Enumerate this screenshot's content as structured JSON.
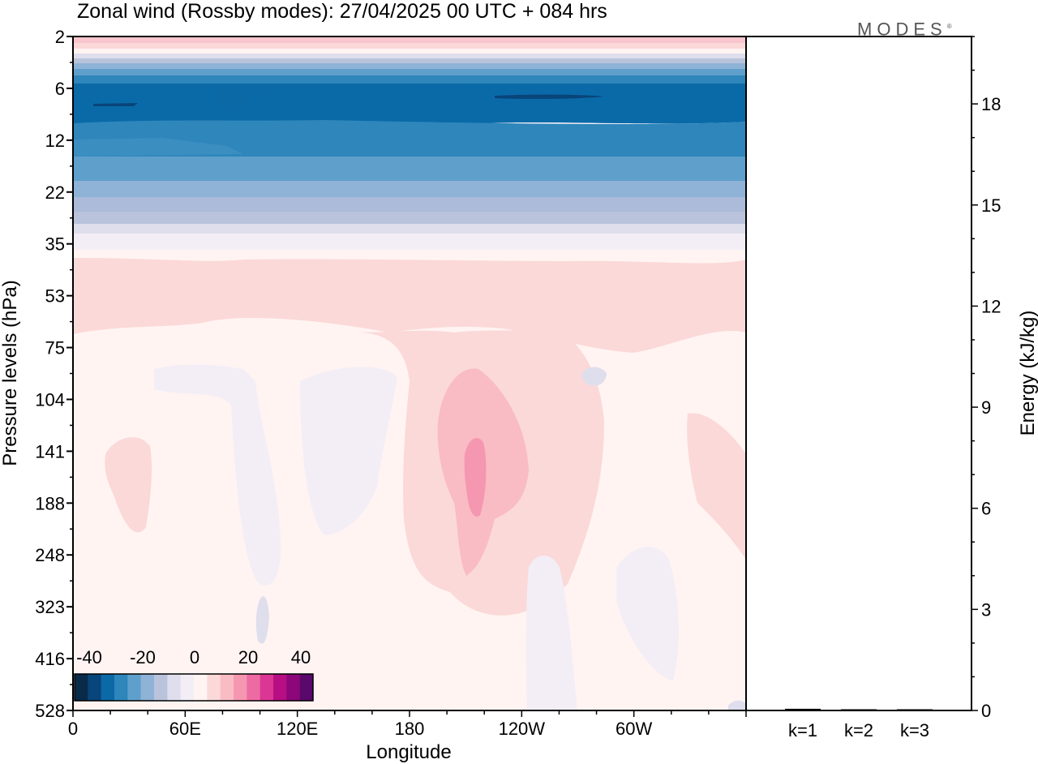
{
  "title": "Zonal wind (Rossby modes):  27/04/2025  00 UTC  + 084 hrs",
  "logo": {
    "text": "MODES",
    "mark": "®"
  },
  "chart_data": [
    {
      "type": "heatmap",
      "title": "Zonal wind (Rossby modes):  27/04/2025  00 UTC  + 084 hrs",
      "xlabel": "Longitude",
      "ylabel": "Pressure levels (hPa)",
      "x_ticks": [
        "0",
        "60E",
        "120E",
        "180",
        "120W",
        "60W"
      ],
      "x_tick_values": [
        0,
        60,
        120,
        180,
        240,
        300
      ],
      "xlim": [
        0,
        360
      ],
      "y_ticks": [
        "2",
        "6",
        "12",
        "22",
        "35",
        "53",
        "75",
        "104",
        "141",
        "188",
        "248",
        "323",
        "416",
        "528"
      ],
      "colorbar": {
        "tick_labels": [
          "-40",
          "-20",
          "0",
          "20",
          "40"
        ],
        "colors": [
          "#0a2a4a",
          "#08457a",
          "#0b69a6",
          "#2e86bb",
          "#5ea0cb",
          "#8eb3d6",
          "#bac3dc",
          "#dfdeec",
          "#f3eef6",
          "#fff4f2",
          "#fbd9d8",
          "#f9bcc4",
          "#f597b0",
          "#ee6aa3",
          "#dc3694",
          "#b70e84",
          "#8c0779",
          "#5a086b"
        ]
      },
      "description_levels": [
        {
          "level": "2",
          "wind": 8
        },
        {
          "level": "6",
          "wind": -30
        },
        {
          "level": "12",
          "wind": -25
        },
        {
          "level": "22",
          "wind": -12
        },
        {
          "level": "35",
          "wind": 0
        },
        {
          "level": "53",
          "wind": 6
        },
        {
          "level": "75",
          "wind": 4
        },
        {
          "level": "141",
          "wind": 3
        },
        {
          "level": "528",
          "wind": 0
        }
      ]
    },
    {
      "type": "bar",
      "categories": [
        "k=1",
        "k=2",
        "k=3"
      ],
      "values": [
        0.05,
        0.03,
        0.03
      ],
      "ylabel": "Energy (kJ/kg)",
      "ylim": [
        0,
        20
      ],
      "y_ticks": [
        "0",
        "3",
        "6",
        "9",
        "12",
        "15",
        "18"
      ]
    }
  ]
}
